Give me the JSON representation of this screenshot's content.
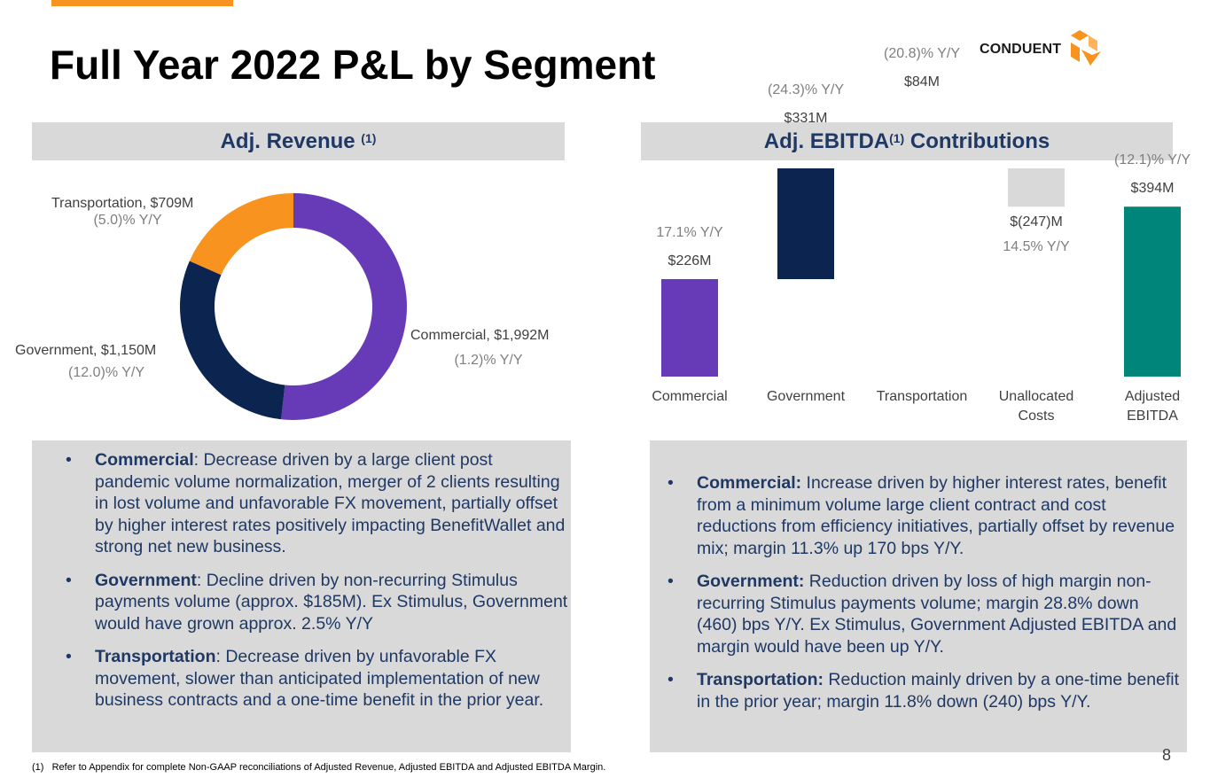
{
  "title": "Full Year 2022 P&L by Segment",
  "logo": {
    "text": "CONDUENT",
    "mark_colors": [
      "#f7931e",
      "#ffb35c"
    ]
  },
  "revenue": {
    "heading": "Adj. Revenue",
    "heading_sup": "(1)",
    "labels": [
      {
        "name": "Commercial, $1,992M",
        "yy": "(1.2)% Y/Y"
      },
      {
        "name": "Government, $1,150M",
        "yy": "(12.0)% Y/Y"
      },
      {
        "name": "Transportation, $709M",
        "yy": "(5.0)% Y/Y"
      }
    ]
  },
  "ebitda": {
    "heading": "Adj. EBITDA",
    "heading_sup": "(1)",
    "heading_suffix": " Contributions",
    "categories_lines": [
      [
        "Commercial"
      ],
      [
        "Government"
      ],
      [
        "Transportation"
      ],
      [
        "Unallocated",
        "Costs"
      ],
      [
        "Adjusted",
        "EBITDA"
      ]
    ],
    "value_labels": [
      "$226M",
      "$331M",
      "$84M",
      "$(247)M",
      "$394M"
    ],
    "yy_labels": [
      "17.1% Y/Y",
      "(24.3)% Y/Y",
      "(20.8)% Y/Y",
      "14.5% Y/Y",
      "(12.1)% Y/Y"
    ]
  },
  "chart_data": [
    {
      "type": "pie",
      "title": "Adj. Revenue (1)",
      "categories": [
        "Commercial",
        "Government",
        "Transportation"
      ],
      "values": [
        1992,
        1150,
        709
      ],
      "unit": "$M",
      "colors": [
        "#673ab7",
        "#0b2550",
        "#f7931e"
      ],
      "yy_change_pct": [
        -1.2,
        -12.0,
        -5.0
      ]
    },
    {
      "type": "bar",
      "subtype": "waterfall",
      "title": "Adj. EBITDA(1) Contributions",
      "categories": [
        "Commercial",
        "Government",
        "Transportation",
        "Unallocated Costs",
        "Adjusted EBITDA"
      ],
      "values": [
        226,
        331,
        84,
        -247,
        394
      ],
      "unit": "$M",
      "colors": [
        "#673ab7",
        "#0b2550",
        "#f7931e",
        "#d9d9d9",
        "#00857a"
      ],
      "yy_change_pct": [
        17.1,
        -24.3,
        -20.8,
        14.5,
        -12.1
      ]
    }
  ],
  "revenue_commentary": [
    {
      "lead": "Commercial",
      "text": ": Decrease driven by a large client post pandemic volume normalization, merger of 2 clients resulting in lost volume and unfavorable FX movement, partially offset by higher interest rates positively impacting BenefitWallet and strong net new business."
    },
    {
      "lead": "Government",
      "text": ": Decline driven by non-recurring Stimulus payments volume (approx. $185M). Ex Stimulus, Government would have grown approx. 2.5% Y/Y"
    },
    {
      "lead": "Transportation",
      "text": ": Decrease driven by unfavorable FX movement, slower than anticipated implementation of new business contracts and a one-time benefit in the prior year."
    }
  ],
  "ebitda_commentary": [
    {
      "lead": "Commercial:",
      "text": " Increase driven by higher interest rates, benefit from a minimum volume large client contract and cost reductions from efficiency initiatives, partially offset by revenue mix; margin 11.3% up 170 bps Y/Y."
    },
    {
      "lead": "Government:",
      "text": " Reduction driven by loss of high margin non-recurring Stimulus payments volume; margin 28.8% down (460) bps Y/Y. Ex Stimulus, Government Adjusted EBITDA and margin would have been up Y/Y."
    },
    {
      "lead": "Transportation:",
      "text": " Reduction mainly driven by a one-time benefit in the prior year; margin 11.8% down (240) bps Y/Y."
    }
  ],
  "bullet_char": "•",
  "footnote": "(1)   Refer to Appendix for complete Non-GAAP reconciliations of Adjusted Revenue, Adjusted EBITDA and Adjusted EBITDA Margin.",
  "page_number": "8"
}
